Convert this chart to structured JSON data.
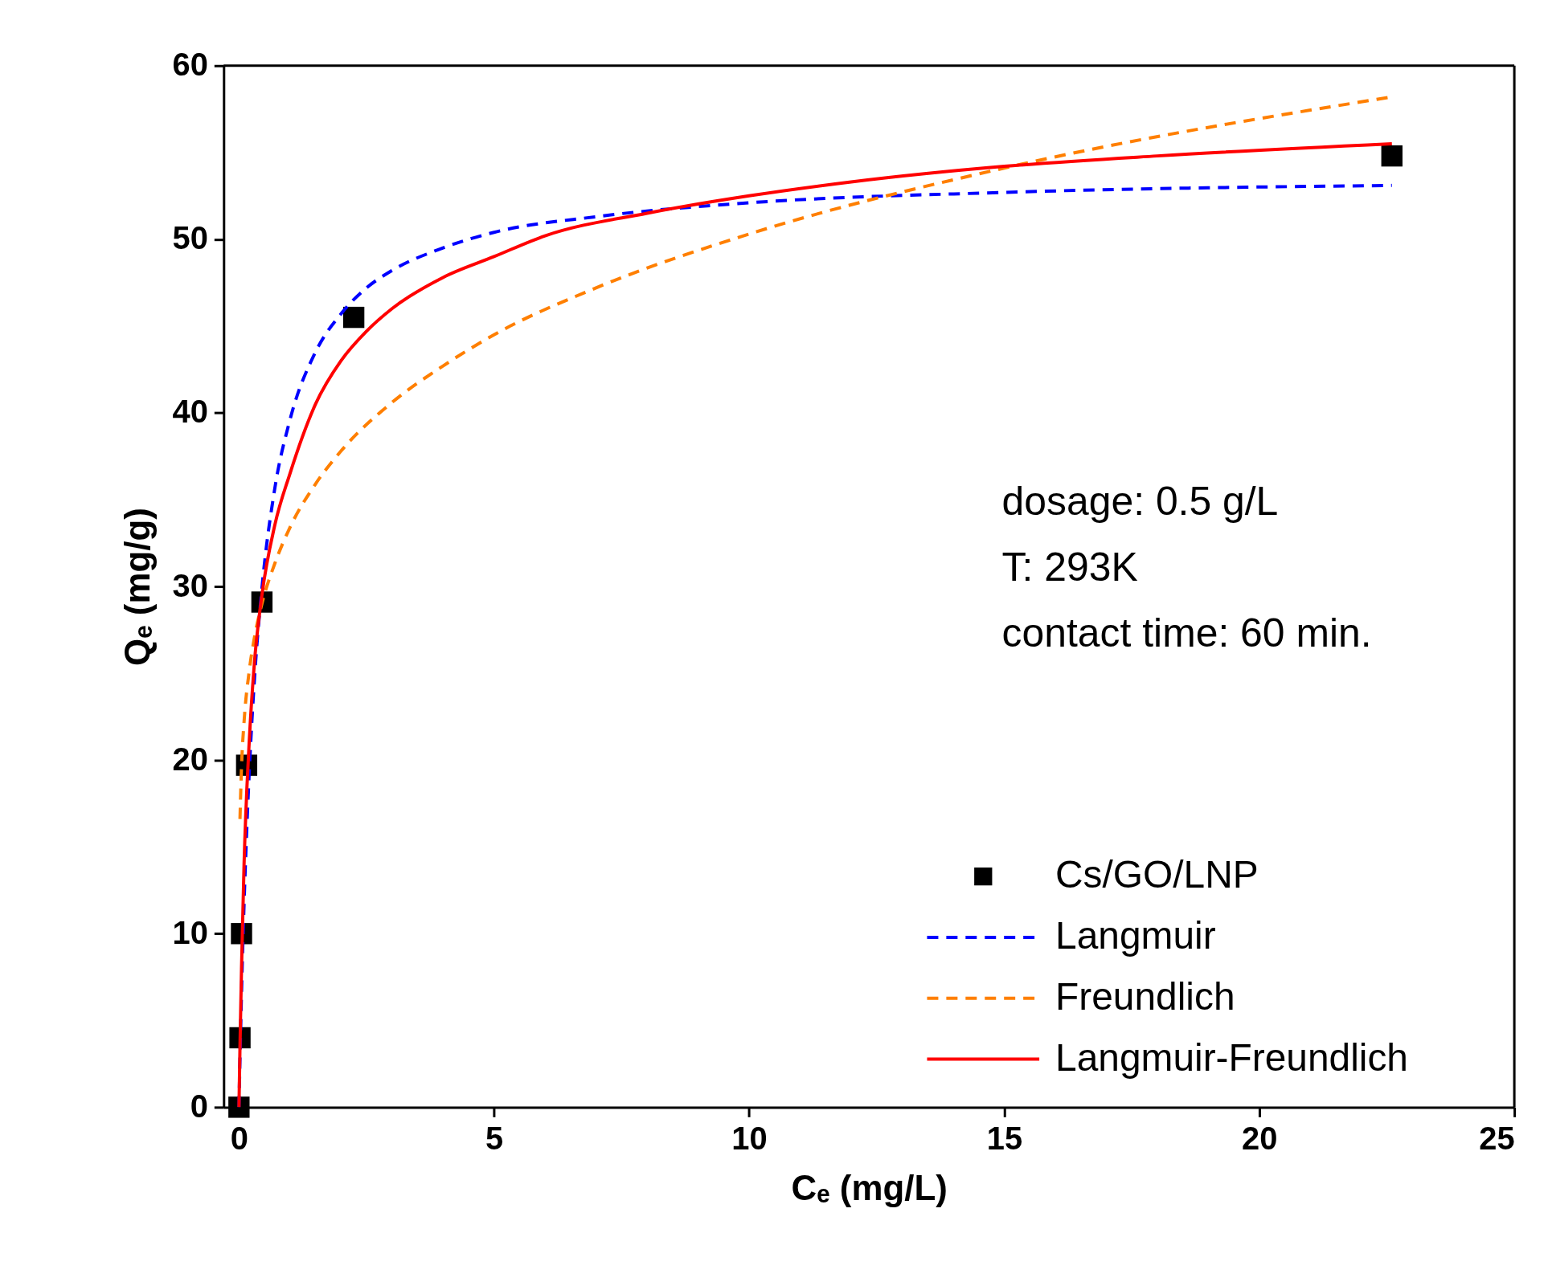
{
  "chart_data": {
    "type": "scatter",
    "xlabel": "Cₑ (mg/L)",
    "ylabel": "Qₑ (mg/g)",
    "xlim": [
      -0.3,
      25
    ],
    "ylim": [
      0,
      60
    ],
    "xticks": [
      0,
      5,
      10,
      15,
      20,
      25
    ],
    "yticks": [
      0,
      10,
      20,
      30,
      40,
      50,
      60
    ],
    "grid": false,
    "legend": "bottom right",
    "annotations": [
      "dosage: 0.5 g/L",
      "T: 293K",
      "contact time: 60 min."
    ],
    "series": [
      {
        "name": "Cs/GO/LNP",
        "marker": "square",
        "color": "#000000",
        "x": [
          0,
          0.02,
          0.05,
          0.15,
          0.45,
          2.25,
          22.6
        ],
        "values": [
          0,
          4,
          10,
          19.7,
          29.1,
          45.5,
          54.8
        ]
      },
      {
        "name": "Langmuir",
        "type": "line",
        "line_style": "dashed",
        "marker": "none",
        "color": "#0000ff",
        "x": [
          0,
          0.02,
          0.05,
          0.1,
          0.2,
          0.3,
          0.45,
          0.7,
          1,
          1.5,
          2,
          2.5,
          3,
          4,
          5,
          7,
          10,
          15,
          22.6
        ],
        "values": [
          0,
          2.8,
          6.6,
          11.7,
          19.2,
          24.5,
          29.9,
          35.6,
          39.6,
          43.5,
          45.7,
          47.2,
          48.2,
          49.5,
          50.4,
          51.3,
          52.1,
          52.7,
          53.1
        ]
      },
      {
        "name": "Freundlich",
        "type": "line",
        "line_style": "dashed",
        "marker": "none",
        "color": "#ff7f00",
        "x": [
          0.02,
          0.05,
          0.1,
          0.2,
          0.3,
          0.45,
          0.7,
          1,
          1.5,
          2,
          3,
          4,
          5,
          7,
          10,
          15,
          22.6
        ],
        "values": [
          16.6,
          19.6,
          22.2,
          25.1,
          27.0,
          29.0,
          31.3,
          33.4,
          35.9,
          37.8,
          40.6,
          42.7,
          44.5,
          47.2,
          50.3,
          54.1,
          58.2
        ]
      },
      {
        "name": "Langmuir-Freundlich",
        "type": "line",
        "line_style": "solid",
        "marker": "none",
        "color": "#ff0000",
        "x": [
          0,
          0.02,
          0.05,
          0.1,
          0.2,
          0.3,
          0.45,
          0.7,
          1,
          1.5,
          2,
          2.5,
          3,
          4,
          5,
          6,
          8,
          10,
          12,
          15,
          18,
          22.6
        ],
        "values": [
          0,
          3.5,
          8,
          14,
          21,
          25.5,
          29.5,
          33.5,
          36.5,
          40.5,
          43,
          44.7,
          46,
          47.8,
          49,
          50.2,
          51.5,
          52.5,
          53.3,
          54.2,
          54.8,
          55.5
        ]
      }
    ]
  }
}
